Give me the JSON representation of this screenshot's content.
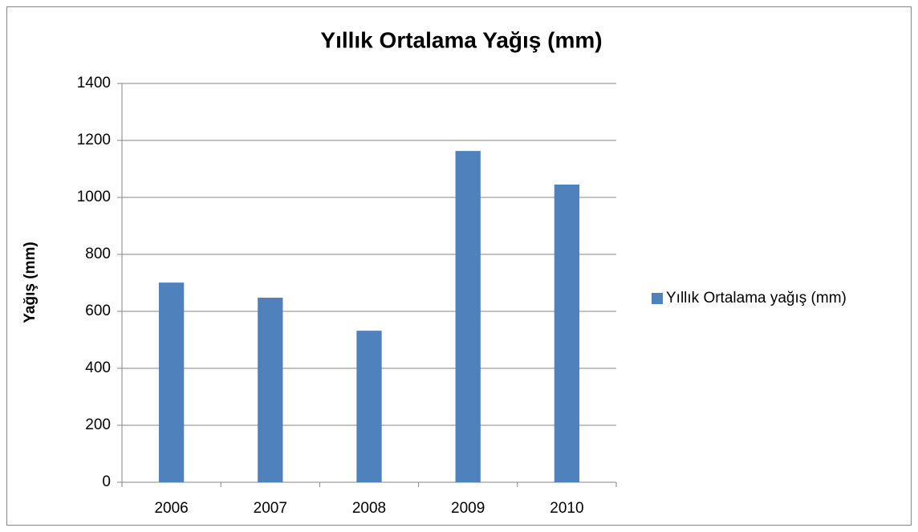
{
  "chart_data": {
    "type": "bar",
    "title": "Yıllık Ortalama Yağış (mm)",
    "y_label": "Yağış (mm)",
    "categories": [
      "2006",
      "2007",
      "2008",
      "2009",
      "2010"
    ],
    "series": [
      {
        "name": "Yıllık Ortalama yağış (mm)",
        "color": "#4f81bd",
        "values": [
          701,
          648,
          532,
          1163,
          1045
        ]
      }
    ],
    "ylim": [
      0,
      1400
    ],
    "yticks": [
      0,
      200,
      400,
      600,
      800,
      1000,
      1200,
      1400
    ],
    "grid": true,
    "legend": "right"
  }
}
